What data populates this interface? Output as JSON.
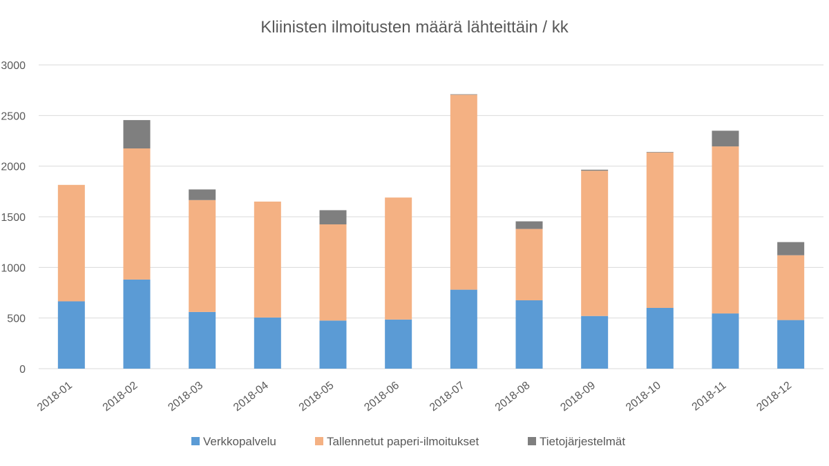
{
  "chart_data": {
    "type": "bar",
    "stacked": true,
    "title": "Kliinisten ilmoitusten määrä lähteittäin / kk",
    "xlabel": "",
    "ylabel": "",
    "ylim": [
      0,
      3000
    ],
    "yticks": [
      0,
      500,
      1000,
      1500,
      2000,
      2500,
      3000
    ],
    "grid": true,
    "legend_position": "bottom",
    "categories": [
      "2018-01",
      "2018-02",
      "2018-03",
      "2018-04",
      "2018-05",
      "2018-06",
      "2018-07",
      "2018-08",
      "2018-09",
      "2018-10",
      "2018-11",
      "2018-12"
    ],
    "series": [
      {
        "name": "Verkkopalvelu",
        "color": "#5b9bd5",
        "values": [
          665,
          880,
          560,
          505,
          475,
          485,
          780,
          675,
          520,
          600,
          545,
          480
        ]
      },
      {
        "name": "Tallennetut paperi-ilmoitukset",
        "color": "#f4b183",
        "values": [
          1150,
          1295,
          1105,
          1145,
          950,
          1205,
          1925,
          705,
          1435,
          1535,
          1650,
          640
        ]
      },
      {
        "name": "Tietojärjestelmät",
        "color": "#7f7f7f",
        "values": [
          0,
          280,
          105,
          0,
          140,
          0,
          5,
          75,
          10,
          5,
          155,
          130
        ]
      }
    ]
  }
}
